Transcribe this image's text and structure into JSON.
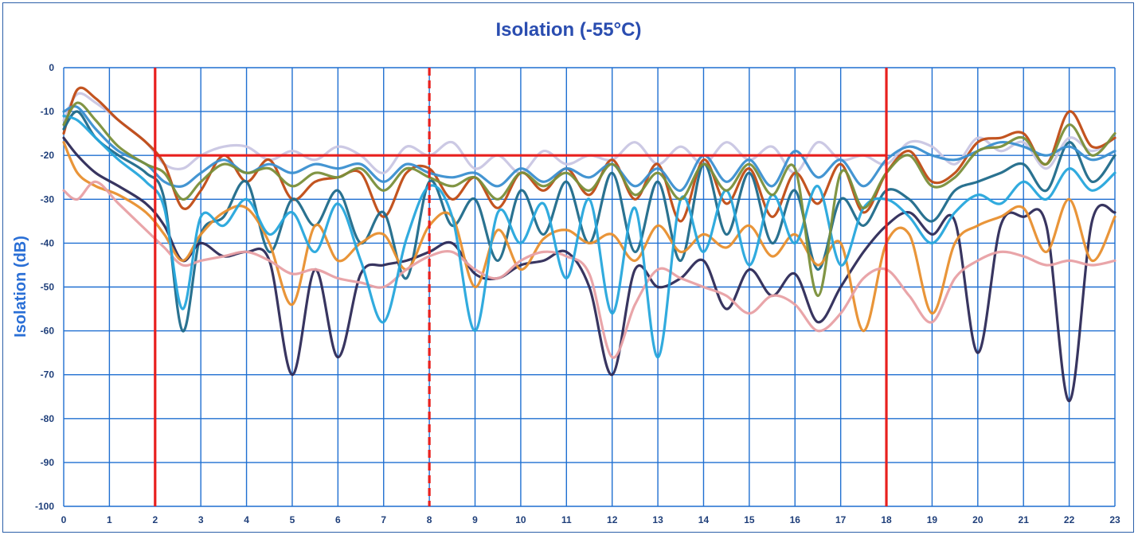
{
  "chart_data": {
    "type": "line",
    "title": "Isolation (-55°C)",
    "xlabel": "",
    "ylabel": "Isolation (dB)",
    "xlim": [
      0,
      23
    ],
    "ylim": [
      -100,
      0
    ],
    "x_ticks": [
      "0",
      "1",
      "2",
      "3",
      "4",
      "5",
      "6",
      "7",
      "8",
      "9",
      "10",
      "11",
      "12",
      "13",
      "14",
      "15",
      "16",
      "17",
      "18",
      "19",
      "20",
      "21",
      "22",
      "23"
    ],
    "y_ticks": [
      "0",
      "-10",
      "-20",
      "-30",
      "-40",
      "-50",
      "-60",
      "-70",
      "-80",
      "-90",
      "-100"
    ],
    "grid": true,
    "grid_color": "#1f6fd1",
    "reference_lines": [
      {
        "type": "vertical",
        "x": 2,
        "style": "solid",
        "color": "#e8201e"
      },
      {
        "type": "vertical",
        "x": 8,
        "style": "dashed",
        "color": "#e8201e"
      },
      {
        "type": "vertical",
        "x": 18,
        "style": "solid",
        "color": "#e8201e"
      },
      {
        "type": "horizontal",
        "y": -20,
        "x_range": [
          2,
          18
        ],
        "style": "solid",
        "color": "#e8201e"
      }
    ],
    "series": [
      {
        "color": "#c9c6e3",
        "x": [
          0,
          0.3,
          0.7,
          1.2,
          1.8,
          2.2,
          2.6,
          3,
          3.5,
          4,
          4.5,
          5,
          5.5,
          6,
          6.5,
          7,
          7.5,
          8,
          8.5,
          9,
          9.5,
          10,
          10.5,
          11,
          11.5,
          12,
          12.5,
          13,
          13.5,
          14,
          14.5,
          15,
          15.5,
          16,
          16.5,
          17,
          17.5,
          18,
          18.5,
          19,
          19.5,
          20,
          20.5,
          21,
          21.5,
          22,
          22.5,
          23
        ],
        "y": [
          -12,
          -6,
          -8,
          -12,
          -17,
          -22,
          -23,
          -20,
          -18,
          -18,
          -21,
          -19,
          -21,
          -18,
          -20,
          -24,
          -18,
          -20,
          -17,
          -23,
          -20,
          -24,
          -19,
          -22,
          -20,
          -21,
          -17,
          -22,
          -18,
          -22,
          -17,
          -21,
          -18,
          -24,
          -17,
          -21,
          -20,
          -22,
          -17,
          -18,
          -22,
          -16,
          -19,
          -17,
          -23,
          -16,
          -19,
          -16
        ]
      },
      {
        "color": "#c04b14",
        "x": [
          0,
          0.3,
          0.7,
          1.2,
          1.8,
          2.2,
          2.6,
          3,
          3.5,
          4,
          4.5,
          5,
          5.5,
          6,
          6.5,
          7,
          7.5,
          8,
          8.5,
          9,
          9.5,
          10,
          10.5,
          11,
          11.5,
          12,
          12.5,
          13,
          13.5,
          14,
          14.5,
          15,
          15.5,
          16,
          16.5,
          17,
          17.5,
          18,
          18.5,
          19,
          19.5,
          20,
          20.5,
          21,
          21.5,
          22,
          22.5,
          23
        ],
        "y": [
          -15,
          -5,
          -7,
          -12,
          -17,
          -22,
          -32,
          -28,
          -20,
          -26,
          -21,
          -30,
          -26,
          -25,
          -24,
          -34,
          -24,
          -23,
          -30,
          -25,
          -32,
          -24,
          -28,
          -23,
          -29,
          -21,
          -30,
          -22,
          -35,
          -21,
          -31,
          -23,
          -34,
          -24,
          -31,
          -22,
          -33,
          -24,
          -19,
          -26,
          -24,
          -17,
          -16,
          -15,
          -22,
          -10,
          -18,
          -16
        ]
      },
      {
        "color": "#1f6a8a",
        "x": [
          0,
          0.3,
          0.7,
          1.2,
          1.8,
          2.2,
          2.6,
          3,
          3.5,
          4,
          4.5,
          5,
          5.5,
          6,
          6.5,
          7,
          7.5,
          8,
          8.5,
          9,
          9.5,
          10,
          10.5,
          11,
          11.5,
          12,
          12.5,
          13,
          13.5,
          14,
          14.5,
          15,
          15.5,
          16,
          16.5,
          17,
          17.5,
          18,
          18.5,
          19,
          19.5,
          20,
          20.5,
          21,
          21.5,
          22,
          22.5,
          23
        ],
        "y": [
          -14,
          -10,
          -16,
          -20,
          -24,
          -30,
          -60,
          -38,
          -34,
          -26,
          -42,
          -30,
          -36,
          -28,
          -40,
          -33,
          -48,
          -26,
          -36,
          -30,
          -44,
          -28,
          -38,
          -26,
          -40,
          -24,
          -42,
          -26,
          -44,
          -22,
          -38,
          -24,
          -40,
          -28,
          -46,
          -30,
          -36,
          -28,
          -30,
          -35,
          -28,
          -26,
          -24,
          -22,
          -28,
          -17,
          -26,
          -20
        ]
      },
      {
        "color": "#3a8fd0",
        "x": [
          0,
          0.3,
          0.7,
          1.2,
          1.8,
          2.2,
          2.6,
          3,
          3.5,
          4,
          4.5,
          5,
          5.5,
          6,
          6.5,
          7,
          7.5,
          8,
          8.5,
          9,
          9.5,
          10,
          10.5,
          11,
          11.5,
          12,
          12.5,
          13,
          13.5,
          14,
          14.5,
          15,
          15.5,
          16,
          16.5,
          17,
          17.5,
          18,
          18.5,
          19,
          19.5,
          20,
          20.5,
          21,
          21.5,
          22,
          22.5,
          23
        ],
        "y": [
          -10,
          -9,
          -14,
          -19,
          -22,
          -26,
          -27,
          -24,
          -21,
          -24,
          -22,
          -24,
          -22,
          -23,
          -22,
          -26,
          -22,
          -24,
          -25,
          -24,
          -27,
          -23,
          -26,
          -23,
          -25,
          -22,
          -27,
          -23,
          -28,
          -20,
          -26,
          -21,
          -27,
          -19,
          -25,
          -21,
          -27,
          -21,
          -18,
          -20,
          -21,
          -19,
          -17,
          -18,
          -20,
          -18,
          -21,
          -19
        ]
      },
      {
        "color": "#2d2a57",
        "x": [
          0,
          0.3,
          0.7,
          1.2,
          1.8,
          2.2,
          2.6,
          3,
          3.5,
          4,
          4.5,
          5,
          5.5,
          6,
          6.5,
          7,
          7.5,
          8,
          8.5,
          9,
          9.5,
          10,
          10.5,
          11,
          11.5,
          12,
          12.5,
          13,
          13.5,
          14,
          14.5,
          15,
          15.5,
          16,
          16.5,
          17,
          17.5,
          18,
          18.5,
          19,
          19.5,
          20,
          20.5,
          21,
          21.5,
          22,
          22.5,
          23
        ],
        "y": [
          -16,
          -20,
          -24,
          -27,
          -31,
          -36,
          -44,
          -40,
          -43,
          -42,
          -44,
          -70,
          -46,
          -66,
          -47,
          -45,
          -44,
          -42,
          -40,
          -47,
          -48,
          -45,
          -44,
          -42,
          -50,
          -70,
          -46,
          -50,
          -48,
          -44,
          -55,
          -46,
          -52,
          -47,
          -58,
          -50,
          -42,
          -36,
          -33,
          -38,
          -35,
          -65,
          -36,
          -34,
          -36,
          -76,
          -35,
          -33
        ]
      },
      {
        "color": "#e88f2e",
        "x": [
          0,
          0.3,
          0.7,
          1.2,
          1.8,
          2.2,
          2.6,
          3,
          3.5,
          4,
          4.5,
          5,
          5.5,
          6,
          6.5,
          7,
          7.5,
          8,
          8.5,
          9,
          9.5,
          10,
          10.5,
          11,
          11.5,
          12,
          12.5,
          13,
          13.5,
          14,
          14.5,
          15,
          15.5,
          16,
          16.5,
          17,
          17.5,
          18,
          18.5,
          19,
          19.5,
          20,
          20.5,
          21,
          21.5,
          22,
          22.5,
          23
        ],
        "y": [
          -17,
          -24,
          -27,
          -29,
          -33,
          -38,
          -44,
          -38,
          -33,
          -32,
          -40,
          -54,
          -36,
          -44,
          -40,
          -38,
          -46,
          -36,
          -34,
          -50,
          -37,
          -46,
          -39,
          -37,
          -40,
          -38,
          -44,
          -36,
          -42,
          -38,
          -41,
          -36,
          -43,
          -38,
          -45,
          -40,
          -60,
          -40,
          -38,
          -56,
          -40,
          -36,
          -34,
          -32,
          -42,
          -30,
          -44,
          -34
        ]
      },
      {
        "color": "#e8a0a4",
        "x": [
          0,
          0.3,
          0.7,
          1.2,
          1.8,
          2.2,
          2.6,
          3,
          3.5,
          4,
          4.5,
          5,
          5.5,
          6,
          6.5,
          7,
          7.5,
          8,
          8.5,
          9,
          9.5,
          10,
          10.5,
          11,
          11.5,
          12,
          12.5,
          13,
          13.5,
          14,
          14.5,
          15,
          15.5,
          16,
          16.5,
          17,
          17.5,
          18,
          18.5,
          19,
          19.5,
          20,
          20.5,
          21,
          21.5,
          22,
          22.5,
          23
        ],
        "y": [
          -28,
          -30,
          -26,
          -31,
          -37,
          -41,
          -45,
          -44,
          -43,
          -42,
          -44,
          -47,
          -46,
          -48,
          -49,
          -50,
          -46,
          -43,
          -42,
          -46,
          -48,
          -44,
          -42,
          -43,
          -47,
          -66,
          -54,
          -46,
          -48,
          -50,
          -52,
          -56,
          -52,
          -54,
          -60,
          -56,
          -48,
          -46,
          -52,
          -58,
          -48,
          -44,
          -42,
          -43,
          -45,
          -44,
          -45,
          -44
        ]
      },
      {
        "color": "#26a6dc",
        "x": [
          0,
          0.3,
          0.7,
          1.2,
          1.8,
          2.2,
          2.6,
          3,
          3.5,
          4,
          4.5,
          5,
          5.5,
          6,
          6.5,
          7,
          7.5,
          8,
          8.5,
          9,
          9.5,
          10,
          10.5,
          11,
          11.5,
          12,
          12.5,
          13,
          13.5,
          14,
          14.5,
          15,
          15.5,
          16,
          16.5,
          17,
          17.5,
          18,
          18.5,
          19,
          19.5,
          20,
          20.5,
          21,
          21.5,
          22,
          22.5,
          23
        ],
        "y": [
          -11,
          -12,
          -16,
          -21,
          -26,
          -32,
          -55,
          -34,
          -36,
          -30,
          -38,
          -33,
          -42,
          -31,
          -44,
          -58,
          -39,
          -27,
          -34,
          -60,
          -33,
          -40,
          -31,
          -48,
          -30,
          -56,
          -32,
          -66,
          -30,
          -42,
          -28,
          -45,
          -29,
          -40,
          -27,
          -45,
          -32,
          -30,
          -34,
          -40,
          -33,
          -29,
          -31,
          -26,
          -30,
          -23,
          -28,
          -24
        ]
      },
      {
        "color": "#7a8f3a",
        "x": [
          0,
          0.3,
          0.7,
          1.2,
          1.8,
          2.2,
          2.6,
          3,
          3.5,
          4,
          4.5,
          5,
          5.5,
          6,
          6.5,
          7,
          7.5,
          8,
          8.5,
          9,
          9.5,
          10,
          10.5,
          11,
          11.5,
          12,
          12.5,
          13,
          13.5,
          14,
          14.5,
          15,
          15.5,
          16,
          16.5,
          17,
          17.5,
          18,
          18.5,
          19,
          19.5,
          20,
          20.5,
          21,
          21.5,
          22,
          22.5,
          23
        ],
        "y": [
          -13,
          -8,
          -12,
          -18,
          -22,
          -24,
          -30,
          -26,
          -22,
          -24,
          -23,
          -27,
          -24,
          -25,
          -23,
          -28,
          -23,
          -25,
          -27,
          -25,
          -30,
          -24,
          -27,
          -24,
          -28,
          -22,
          -29,
          -24,
          -30,
          -22,
          -28,
          -22,
          -29,
          -23,
          -52,
          -24,
          -32,
          -24,
          -20,
          -27,
          -25,
          -19,
          -18,
          -16,
          -22,
          -13,
          -20,
          -15
        ]
      }
    ]
  }
}
